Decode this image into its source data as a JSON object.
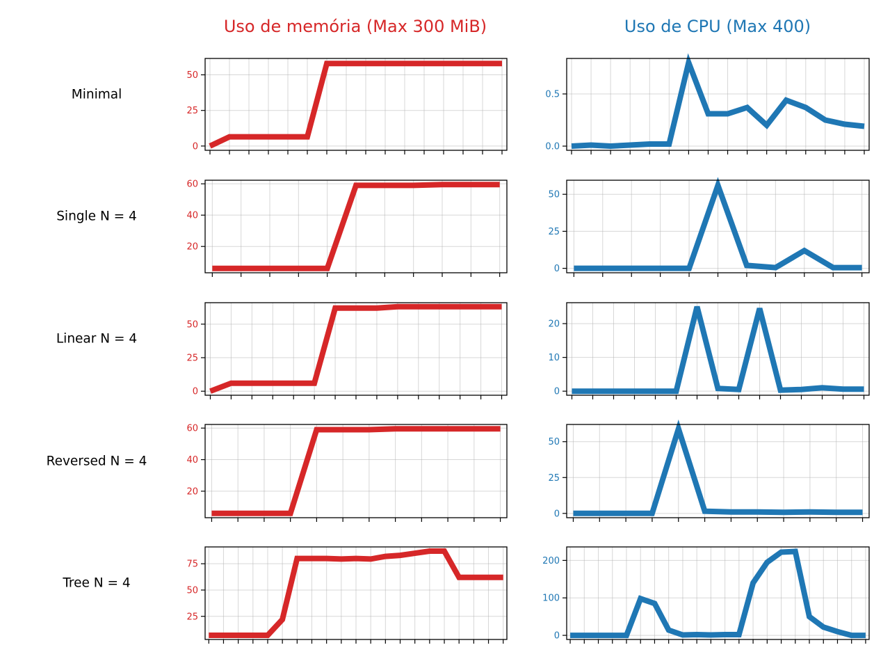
{
  "colors": {
    "memory": "#d62728",
    "cpu": "#1f77b4"
  },
  "column_titles": {
    "memory": "Uso de memória (Max 300 MiB)",
    "cpu": "Uso de CPU (Max 400)"
  },
  "row_labels": [
    "Minimal",
    "Single N = 4",
    "Linear N = 4",
    "Reversed N = 4",
    "Tree N = 4"
  ],
  "chart_data": [
    {
      "type": "line",
      "row": "Minimal",
      "metric": "memory",
      "x": [
        0,
        1,
        2,
        3,
        4,
        5,
        6,
        7,
        8,
        9,
        10,
        11,
        12,
        13,
        14,
        15
      ],
      "values": [
        0,
        6.5,
        6.5,
        6.5,
        6.5,
        6.5,
        58,
        58,
        58,
        58,
        58,
        58,
        58,
        58,
        58,
        58
      ],
      "yticks": [
        0,
        25,
        50
      ],
      "ylim": [
        -3,
        61.5
      ],
      "xlim": [
        -0.25,
        15.25
      ]
    },
    {
      "type": "line",
      "row": "Minimal",
      "metric": "cpu",
      "x": [
        0,
        1,
        2,
        3,
        4,
        5,
        6,
        7,
        8,
        9,
        10,
        11,
        12,
        13,
        14,
        15
      ],
      "values": [
        0,
        0.01,
        0,
        0.01,
        0.02,
        0.02,
        0.8,
        0.31,
        0.31,
        0.37,
        0.2,
        0.44,
        0.37,
        0.25,
        0.21,
        0.19
      ],
      "yticks": [
        0,
        0.5
      ],
      "ytick_labels": [
        "0.0",
        "0.5"
      ],
      "ylim": [
        -0.04,
        0.84
      ],
      "xlim": [
        -0.25,
        15.25
      ]
    },
    {
      "type": "line",
      "row": "Single N = 4",
      "metric": "memory",
      "x": [
        0,
        1,
        2,
        3,
        4,
        5,
        6,
        7,
        8,
        9,
        10
      ],
      "values": [
        6,
        6,
        6,
        6,
        6,
        59,
        59,
        59,
        59.5,
        59.5,
        59.5
      ],
      "yticks": [
        20,
        40,
        60
      ],
      "ylim": [
        3.2,
        62.3
      ],
      "xlim": [
        -0.25,
        10.25
      ]
    },
    {
      "type": "line",
      "row": "Single N = 4",
      "metric": "cpu",
      "x": [
        0,
        1,
        2,
        3,
        4,
        5,
        6,
        7,
        8,
        9,
        10
      ],
      "values": [
        0,
        0,
        0,
        0,
        0,
        56,
        2,
        0.5,
        12,
        0.5,
        0.5
      ],
      "yticks": [
        0,
        25,
        50
      ],
      "ylim": [
        -3,
        59.5
      ],
      "xlim": [
        -0.25,
        10.25
      ]
    },
    {
      "type": "line",
      "row": "Linear N = 4",
      "metric": "memory",
      "x": [
        0,
        1,
        2,
        3,
        4,
        5,
        6,
        7,
        8,
        9,
        10,
        11,
        12,
        13,
        14
      ],
      "values": [
        0,
        6,
        6,
        6,
        6,
        6,
        62,
        62,
        62,
        63,
        63,
        63,
        63,
        63,
        63
      ],
      "yticks": [
        0,
        25,
        50
      ],
      "ylim": [
        -3,
        66
      ],
      "xlim": [
        -0.25,
        14.25
      ]
    },
    {
      "type": "line",
      "row": "Linear N = 4",
      "metric": "cpu",
      "x": [
        0,
        1,
        2,
        3,
        4,
        5,
        6,
        7,
        8,
        9,
        10,
        11,
        12,
        13,
        14
      ],
      "values": [
        0,
        0,
        0,
        0,
        0,
        0,
        25,
        0.8,
        0.5,
        24.5,
        0.3,
        0.5,
        1,
        0.6,
        0.6
      ],
      "yticks": [
        0,
        10,
        20
      ],
      "ylim": [
        -1.2,
        26.2
      ],
      "xlim": [
        -0.25,
        14.25
      ]
    },
    {
      "type": "line",
      "row": "Reversed N = 4",
      "metric": "memory",
      "x": [
        0,
        1,
        2,
        3,
        4,
        5,
        6,
        7,
        8,
        9,
        10,
        11
      ],
      "values": [
        6,
        6,
        6,
        6,
        59,
        59,
        59,
        59.5,
        59.5,
        59.5,
        59.5,
        59.5
      ],
      "yticks": [
        20,
        40,
        60
      ],
      "ylim": [
        3.2,
        62.3
      ],
      "xlim": [
        -0.25,
        11.25
      ]
    },
    {
      "type": "line",
      "row": "Reversed N = 4",
      "metric": "cpu",
      "x": [
        0,
        1,
        2,
        3,
        4,
        5,
        6,
        7,
        8,
        9,
        10,
        11
      ],
      "values": [
        0,
        0,
        0,
        0,
        59,
        1.5,
        1,
        1,
        0.8,
        1,
        0.8,
        0.8
      ],
      "yticks": [
        0,
        25,
        50
      ],
      "ylim": [
        -3,
        62
      ],
      "xlim": [
        -0.25,
        11.25
      ]
    },
    {
      "type": "line",
      "row": "Tree N = 4",
      "metric": "memory",
      "x": [
        0,
        1,
        2,
        3,
        4,
        5,
        6,
        7,
        8,
        9,
        10,
        11,
        12,
        13,
        14,
        15,
        16,
        17,
        18,
        19,
        20
      ],
      "values": [
        7,
        7,
        7,
        7,
        7,
        22,
        80,
        80,
        80,
        79.5,
        80,
        79.5,
        82,
        83,
        85,
        87,
        87,
        62,
        62,
        62,
        62
      ],
      "yticks": [
        25,
        50,
        75
      ],
      "ylim": [
        3,
        91
      ],
      "xlim": [
        -0.25,
        20.25
      ]
    },
    {
      "type": "line",
      "row": "Tree N = 4",
      "metric": "cpu",
      "x": [
        0,
        1,
        2,
        3,
        4,
        5,
        6,
        7,
        8,
        9,
        10,
        11,
        12,
        13,
        14,
        15,
        16,
        17,
        18,
        19,
        20,
        21
      ],
      "values": [
        0,
        0,
        0,
        0,
        0,
        98,
        85,
        14,
        1,
        2,
        1,
        2,
        2,
        140,
        195,
        222,
        224,
        50,
        22,
        10,
        0,
        0
      ],
      "yticks": [
        0,
        100,
        200
      ],
      "ylim": [
        -11,
        236
      ],
      "xlim": [
        -0.25,
        21.25
      ]
    }
  ]
}
